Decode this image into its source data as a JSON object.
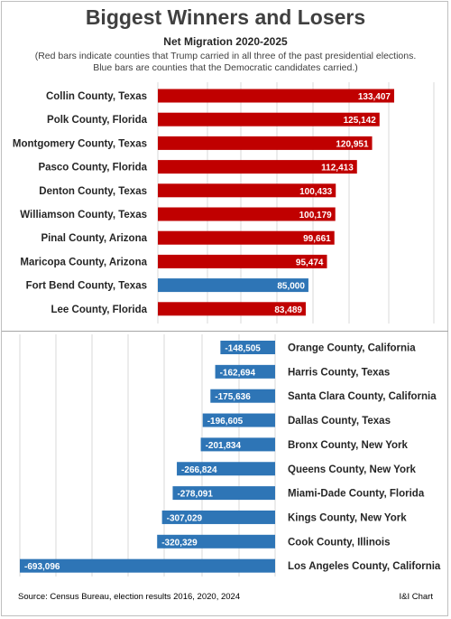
{
  "header": {
    "title": "Biggest Winners and Losers",
    "subtitle": "Net Migration 2020-2025",
    "note_line1": "(Red bars indicate counties that Trump carried in all three of the past presidential elections.",
    "note_line2": "Blue bars are counties that the Democratic candidates carried.)"
  },
  "footer": {
    "source": "Source: Census Bureau, election results 2016, 2020, 2024",
    "credit": "I&I Chart"
  },
  "colors": {
    "trump": "#c00000",
    "democratic": "#2e75b6"
  },
  "chart_data": [
    {
      "type": "bar",
      "orientation": "horizontal",
      "grid": true,
      "categories": [
        "Collin County, Texas",
        "Polk County, Florida",
        "Montgomery County, Texas",
        "Pasco County, Florida",
        "Denton County, Texas",
        "Williamson County, Texas",
        "Pinal County, Arizona",
        "Maricopa County, Arizona",
        "Fort Bend County, Texas",
        "Lee County, Florida"
      ],
      "values": [
        133407,
        125142,
        120951,
        112413,
        100433,
        100179,
        99661,
        95474,
        85000,
        83489
      ],
      "labels": [
        "133,407",
        "125,142",
        "120,951",
        "112,413",
        "100,433",
        "100,179",
        "99,661",
        "95,474",
        "85,000",
        "83,489"
      ],
      "bar_colors": [
        "#c00000",
        "#c00000",
        "#c00000",
        "#c00000",
        "#c00000",
        "#c00000",
        "#c00000",
        "#c00000",
        "#2e75b6",
        "#c00000"
      ]
    },
    {
      "type": "bar",
      "orientation": "horizontal",
      "grid": true,
      "categories": [
        "Orange County, California",
        "Harris County, Texas",
        "Santa Clara County, California",
        "Dallas County, Texas",
        "Bronx County, New York",
        "Queens County, New York",
        "Miami-Dade County, Florida",
        "Kings County, New York",
        "Cook County, Illinois",
        "Los Angeles County, California"
      ],
      "values": [
        -148505,
        -162694,
        -175636,
        -196605,
        -201834,
        -266824,
        -278091,
        -307029,
        -320329,
        -693096
      ],
      "labels": [
        "-148,505",
        "-162,694",
        "-175,636",
        "-196,605",
        "-201,834",
        "-266,824",
        "-278,091",
        "-307,029",
        "-320,329",
        "-693,096"
      ],
      "bar_colors": [
        "#2e75b6",
        "#2e75b6",
        "#2e75b6",
        "#2e75b6",
        "#2e75b6",
        "#2e75b6",
        "#2e75b6",
        "#2e75b6",
        "#2e75b6",
        "#2e75b6"
      ]
    }
  ]
}
